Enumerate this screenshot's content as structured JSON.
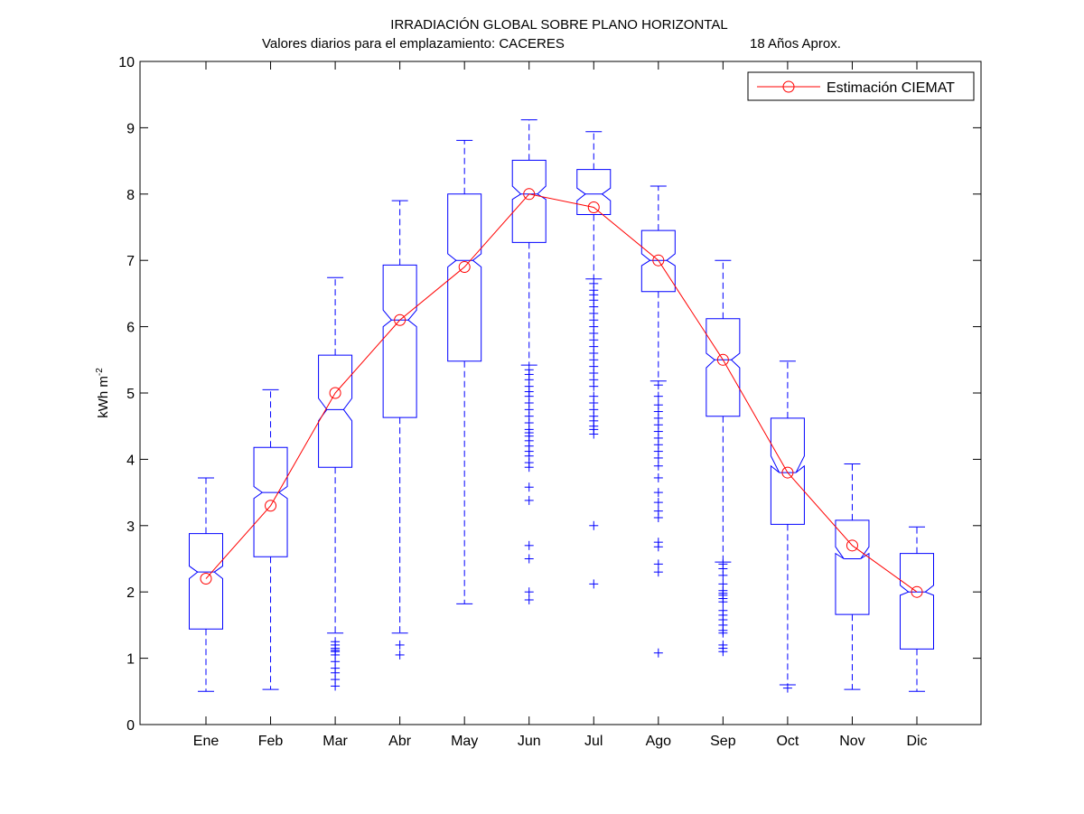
{
  "chart_data": {
    "type": "box",
    "title": "IRRADIACIÓN GLOBAL SOBRE PLANO HORIZONTAL",
    "subtitle_left": "Valores diarios para el emplazamiento:  CACERES",
    "subtitle_right": "18 Años Aprox.",
    "ylabel_main": "kWh m",
    "ylabel_sup": "-2",
    "xlabel": "",
    "ylim": [
      0,
      10
    ],
    "yticks": [
      0,
      1,
      2,
      3,
      4,
      5,
      6,
      7,
      8,
      9,
      10
    ],
    "grid": false,
    "legend_position": "top-right",
    "categories": [
      "Ene",
      "Feb",
      "Mar",
      "Abr",
      "May",
      "Jun",
      "Jul",
      "Ago",
      "Sep",
      "Oct",
      "Nov",
      "Dic"
    ],
    "colors": {
      "box": "#0000ff",
      "estimate": "#ff0000",
      "axis": "#000000"
    },
    "boxes": [
      {
        "whisker_low": 0.5,
        "q1": 1.44,
        "median": 2.3,
        "q3": 2.88,
        "whisker_high": 3.72,
        "notch_low": 2.2,
        "notch_high": 2.39,
        "outliers": []
      },
      {
        "whisker_low": 0.53,
        "q1": 2.53,
        "median": 3.5,
        "q3": 4.18,
        "whisker_high": 5.05,
        "notch_low": 3.41,
        "notch_high": 3.59,
        "outliers": []
      },
      {
        "whisker_low": 1.38,
        "q1": 3.88,
        "median": 4.75,
        "q3": 5.57,
        "whisker_high": 6.74,
        "notch_low": 4.58,
        "notch_high": 4.92,
        "outliers": [
          1.25,
          1.2,
          1.15,
          1.12,
          1.1,
          1.05,
          0.95,
          0.85,
          0.78,
          0.68,
          0.58
        ]
      },
      {
        "whisker_low": 1.38,
        "q1": 4.63,
        "median": 6.1,
        "q3": 6.93,
        "whisker_high": 7.9,
        "notch_low": 6.0,
        "notch_high": 6.25,
        "outliers": [
          1.2,
          1.05
        ]
      },
      {
        "whisker_low": 1.82,
        "q1": 5.48,
        "median": 7.0,
        "q3": 8.0,
        "whisker_high": 8.81,
        "notch_low": 6.9,
        "notch_high": 7.1,
        "outliers": []
      },
      {
        "whisker_low": 5.42,
        "q1": 7.27,
        "median": 8.0,
        "q3": 8.51,
        "whisker_high": 9.12,
        "notch_low": 7.92,
        "notch_high": 8.12,
        "outliers": [
          5.35,
          5.28,
          5.2,
          5.1,
          5.02,
          4.95,
          4.85,
          4.75,
          4.65,
          4.55,
          4.45,
          4.4,
          4.35,
          4.28,
          4.2,
          4.12,
          4.05,
          3.95,
          3.88,
          3.58,
          3.38,
          2.7,
          2.5,
          2.0,
          1.88
        ]
      },
      {
        "whisker_low": 6.72,
        "q1": 7.69,
        "median": 8.0,
        "q3": 8.37,
        "whisker_high": 8.94,
        "notch_low": 7.9,
        "notch_high": 8.09,
        "outliers": [
          6.65,
          6.55,
          6.48,
          6.4,
          6.3,
          6.2,
          6.1,
          6.0,
          5.9,
          5.8,
          5.7,
          5.6,
          5.5,
          5.4,
          5.3,
          5.2,
          5.1,
          4.95,
          4.85,
          4.75,
          4.65,
          4.58,
          4.5,
          4.45,
          4.38,
          3.0,
          2.12
        ]
      },
      {
        "whisker_low": 5.18,
        "q1": 6.53,
        "median": 7.0,
        "q3": 7.45,
        "whisker_high": 8.12,
        "notch_low": 6.92,
        "notch_high": 7.1,
        "outliers": [
          5.12,
          4.95,
          4.82,
          4.72,
          4.62,
          4.52,
          4.42,
          4.32,
          4.22,
          4.12,
          4.02,
          3.9,
          3.72,
          3.5,
          3.35,
          3.22,
          3.12,
          2.75,
          2.68,
          2.42,
          2.3,
          1.08
        ]
      },
      {
        "whisker_low": 2.45,
        "q1": 4.65,
        "median": 5.5,
        "q3": 6.12,
        "whisker_high": 7.0,
        "notch_low": 5.38,
        "notch_high": 5.6,
        "outliers": [
          2.42,
          2.35,
          2.25,
          2.12,
          2.02,
          1.98,
          1.95,
          1.9,
          1.85,
          1.72,
          1.65,
          1.58,
          1.5,
          1.42,
          1.38,
          1.2,
          1.15,
          1.1
        ]
      },
      {
        "whisker_low": 0.6,
        "q1": 3.02,
        "median": 3.8,
        "q3": 4.62,
        "whisker_high": 5.48,
        "notch_low": 3.9,
        "notch_high": 4.05,
        "outliers": [
          0.55
        ]
      },
      {
        "whisker_low": 0.53,
        "q1": 1.66,
        "median": 2.5,
        "q3": 3.08,
        "whisker_high": 3.93,
        "notch_low": 2.58,
        "notch_high": 2.68,
        "outliers": []
      },
      {
        "whisker_low": 0.5,
        "q1": 1.14,
        "median": 2.0,
        "q3": 2.58,
        "whisker_high": 2.98,
        "notch_low": 1.95,
        "notch_high": 2.1,
        "outliers": []
      }
    ],
    "series": [
      {
        "name": "Estimación CIEMAT",
        "values": [
          2.2,
          3.3,
          5.0,
          6.1,
          6.9,
          8.0,
          7.8,
          7.0,
          5.5,
          3.8,
          2.7,
          2.0
        ]
      }
    ]
  }
}
